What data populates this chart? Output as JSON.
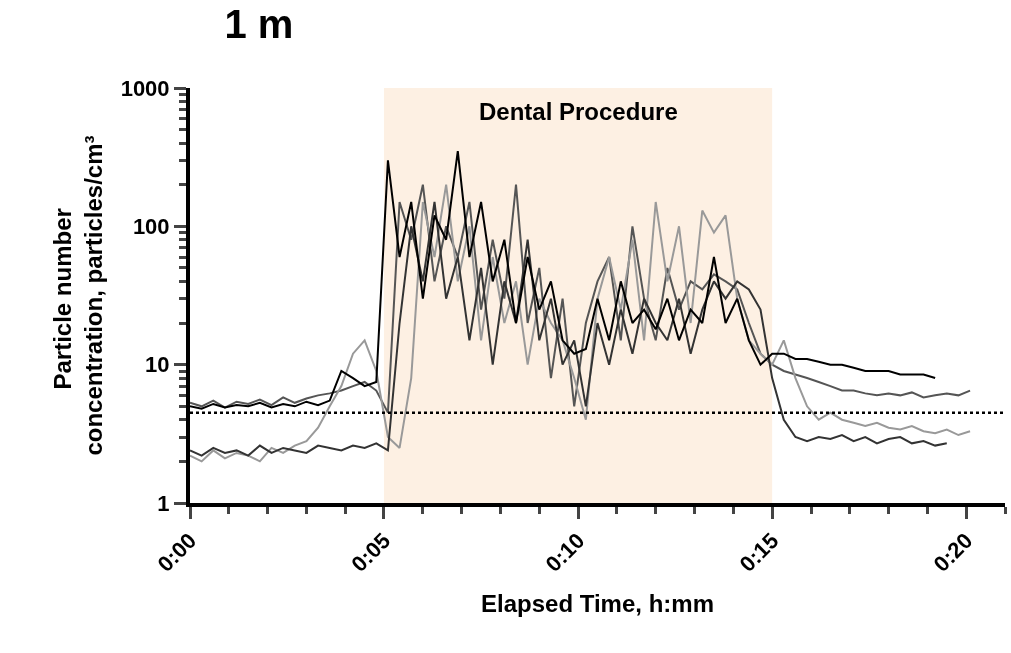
{
  "chart_data": {
    "type": "line",
    "title": "1 m",
    "xlabel": "Elapsed Time, h:mm",
    "ylabel": "Particle number concentration, particles/cm³",
    "x": [
      0,
      0.005,
      0.01,
      0.015,
      0.02,
      0.025,
      0.03,
      0.035,
      0.04,
      0.045,
      0.05,
      0.055,
      0.06,
      0.065,
      0.07,
      0.075,
      0.08,
      0.085,
      0.09,
      0.095,
      0.1,
      0.105,
      0.11,
      0.115,
      0.12,
      0.125,
      0.13,
      0.135,
      0.14,
      0.145,
      0.15,
      0.155,
      0.16,
      0.165,
      0.17,
      0.175,
      0.18,
      0.185,
      0.19,
      0.195,
      0.2,
      0.205,
      0.21,
      0.215,
      0.22,
      0.225,
      0.23,
      0.235,
      0.24,
      0.245,
      0.25,
      0.255,
      0.26,
      0.265,
      0.27,
      0.275,
      0.28,
      0.285,
      0.29,
      0.295,
      0.3,
      0.305,
      0.31,
      0.315,
      0.32,
      0.325,
      0.33,
      0.335
    ],
    "series": [
      {
        "color": "#555555",
        "values": [
          5.3,
          5.0,
          5.5,
          4.9,
          5.4,
          5.2,
          5.6,
          5.1,
          5.8,
          5.3,
          5.7,
          6.0,
          6.2,
          6.5,
          7,
          7.5,
          6.5,
          4.5,
          150,
          80,
          200,
          40,
          100,
          60,
          150,
          25,
          80,
          30,
          200,
          20,
          50,
          8,
          30,
          5,
          20,
          40,
          60,
          15,
          100,
          30,
          15,
          50,
          25,
          40,
          35,
          45,
          40,
          35,
          20,
          12,
          10,
          9,
          8.5,
          8,
          7.5,
          7,
          6.5,
          6.5,
          6.2,
          6,
          6.2,
          6,
          6.3,
          5.8,
          6,
          6.2,
          6,
          6.5
        ]
      },
      {
        "color": "#999999",
        "values": [
          2.2,
          2.0,
          2.4,
          2.1,
          2.3,
          2.2,
          2.0,
          2.5,
          2.3,
          2.6,
          2.8,
          3.5,
          5,
          7,
          12,
          15,
          9,
          3,
          2.5,
          8,
          150,
          60,
          200,
          40,
          100,
          15,
          60,
          20,
          40,
          10,
          30,
          20,
          15,
          8,
          4,
          30,
          60,
          25,
          80,
          15,
          150,
          40,
          100,
          20,
          130,
          90,
          120,
          30,
          15,
          12,
          10,
          15,
          8,
          5,
          4,
          4.5,
          4,
          3.8,
          3.6,
          3.8,
          3.5,
          3.4,
          3.6,
          3.3,
          3.2,
          3.4,
          3.1,
          3.3
        ]
      },
      {
        "color": "#333333",
        "values": [
          2.4,
          2.2,
          2.5,
          2.3,
          2.4,
          2.2,
          2.6,
          2.3,
          2.5,
          2.4,
          2.3,
          2.6,
          2.5,
          2.4,
          2.6,
          2.5,
          2.7,
          2.4,
          20,
          100,
          40,
          150,
          30,
          60,
          15,
          50,
          10,
          40,
          20,
          80,
          15,
          30,
          10,
          15,
          5,
          20,
          10,
          25,
          12,
          30,
          20,
          15,
          30,
          12,
          25,
          40,
          30,
          40,
          35,
          25,
          8,
          4,
          3,
          2.8,
          3,
          2.9,
          3.1,
          2.8,
          3,
          2.7,
          2.9,
          3,
          2.7,
          2.8,
          2.6,
          2.7,
          null,
          null
        ]
      },
      {
        "color": "#000000",
        "values": [
          5.0,
          4.8,
          5.2,
          4.9,
          5.1,
          5.0,
          5.3,
          4.9,
          5.2,
          5.0,
          5.4,
          5.1,
          5.5,
          9,
          8,
          7,
          7.5,
          300,
          60,
          150,
          30,
          120,
          80,
          350,
          60,
          150,
          40,
          80,
          20,
          60,
          25,
          40,
          15,
          12,
          13,
          30,
          15,
          40,
          20,
          25,
          18,
          30,
          15,
          25,
          20,
          60,
          20,
          30,
          15,
          10,
          12,
          12,
          11,
          11,
          10.5,
          10,
          10,
          9.5,
          9,
          9,
          9,
          8.5,
          8.5,
          8.5,
          8,
          null,
          null,
          null
        ]
      }
    ],
    "log": "y",
    "xlim": [
      0,
      0.35
    ],
    "ylim": [
      1,
      1000
    ],
    "xticks": [
      {
        "value": 0,
        "label": "0:00"
      },
      {
        "value": 0.0167,
        "label": null
      },
      {
        "value": 0.0333,
        "label": null
      },
      {
        "value": 0.05,
        "label": null
      },
      {
        "value": 0.0667,
        "label": null
      },
      {
        "value": 0.0833,
        "label": "0:05"
      },
      {
        "value": 0.1,
        "label": null
      },
      {
        "value": 0.1167,
        "label": null
      },
      {
        "value": 0.1333,
        "label": null
      },
      {
        "value": 0.15,
        "label": null
      },
      {
        "value": 0.1667,
        "label": "0:10"
      },
      {
        "value": 0.1833,
        "label": null
      },
      {
        "value": 0.2,
        "label": null
      },
      {
        "value": 0.2167,
        "label": null
      },
      {
        "value": 0.2333,
        "label": null
      },
      {
        "value": 0.25,
        "label": "0:15"
      },
      {
        "value": 0.2667,
        "label": null
      },
      {
        "value": 0.2833,
        "label": null
      },
      {
        "value": 0.3,
        "label": null
      },
      {
        "value": 0.3167,
        "label": null
      },
      {
        "value": 0.3333,
        "label": "0:20"
      },
      {
        "value": 0.35,
        "label": null
      }
    ],
    "yticks": [
      1,
      {
        "value": 2,
        "label": null
      },
      {
        "value": 3,
        "label": null
      },
      {
        "value": 4,
        "label": null
      },
      {
        "value": 5,
        "label": null
      },
      {
        "value": 6,
        "label": null
      },
      {
        "value": 7,
        "label": null
      },
      {
        "value": 8,
        "label": null
      },
      {
        "value": 9,
        "label": null
      },
      10,
      {
        "value": 20,
        "label": null
      },
      {
        "value": 30,
        "label": null
      },
      {
        "value": 40,
        "label": null
      },
      {
        "value": 50,
        "label": null
      },
      {
        "value": 60,
        "label": null
      },
      {
        "value": 70,
        "label": null
      },
      {
        "value": 80,
        "label": null
      },
      {
        "value": 90,
        "label": null
      },
      100,
      {
        "value": 200,
        "label": null
      },
      {
        "value": 300,
        "label": null
      },
      {
        "value": 400,
        "label": null
      },
      {
        "value": 500,
        "label": null
      },
      {
        "value": 600,
        "label": null
      },
      {
        "value": 700,
        "label": null
      },
      {
        "value": 800,
        "label": null
      },
      {
        "value": 900,
        "label": null
      },
      1000
    ],
    "bands": [
      {
        "axis": "x",
        "from": 0.0833,
        "to": 0.25,
        "label": "Dental Procedure",
        "color": "#fdf0e3"
      }
    ],
    "ref_lines": [
      {
        "axis": "y",
        "value": 4.5,
        "line_style": "dotted",
        "color": "#000000"
      }
    ],
    "grid": false,
    "marker": "none",
    "line_style": "solid"
  }
}
